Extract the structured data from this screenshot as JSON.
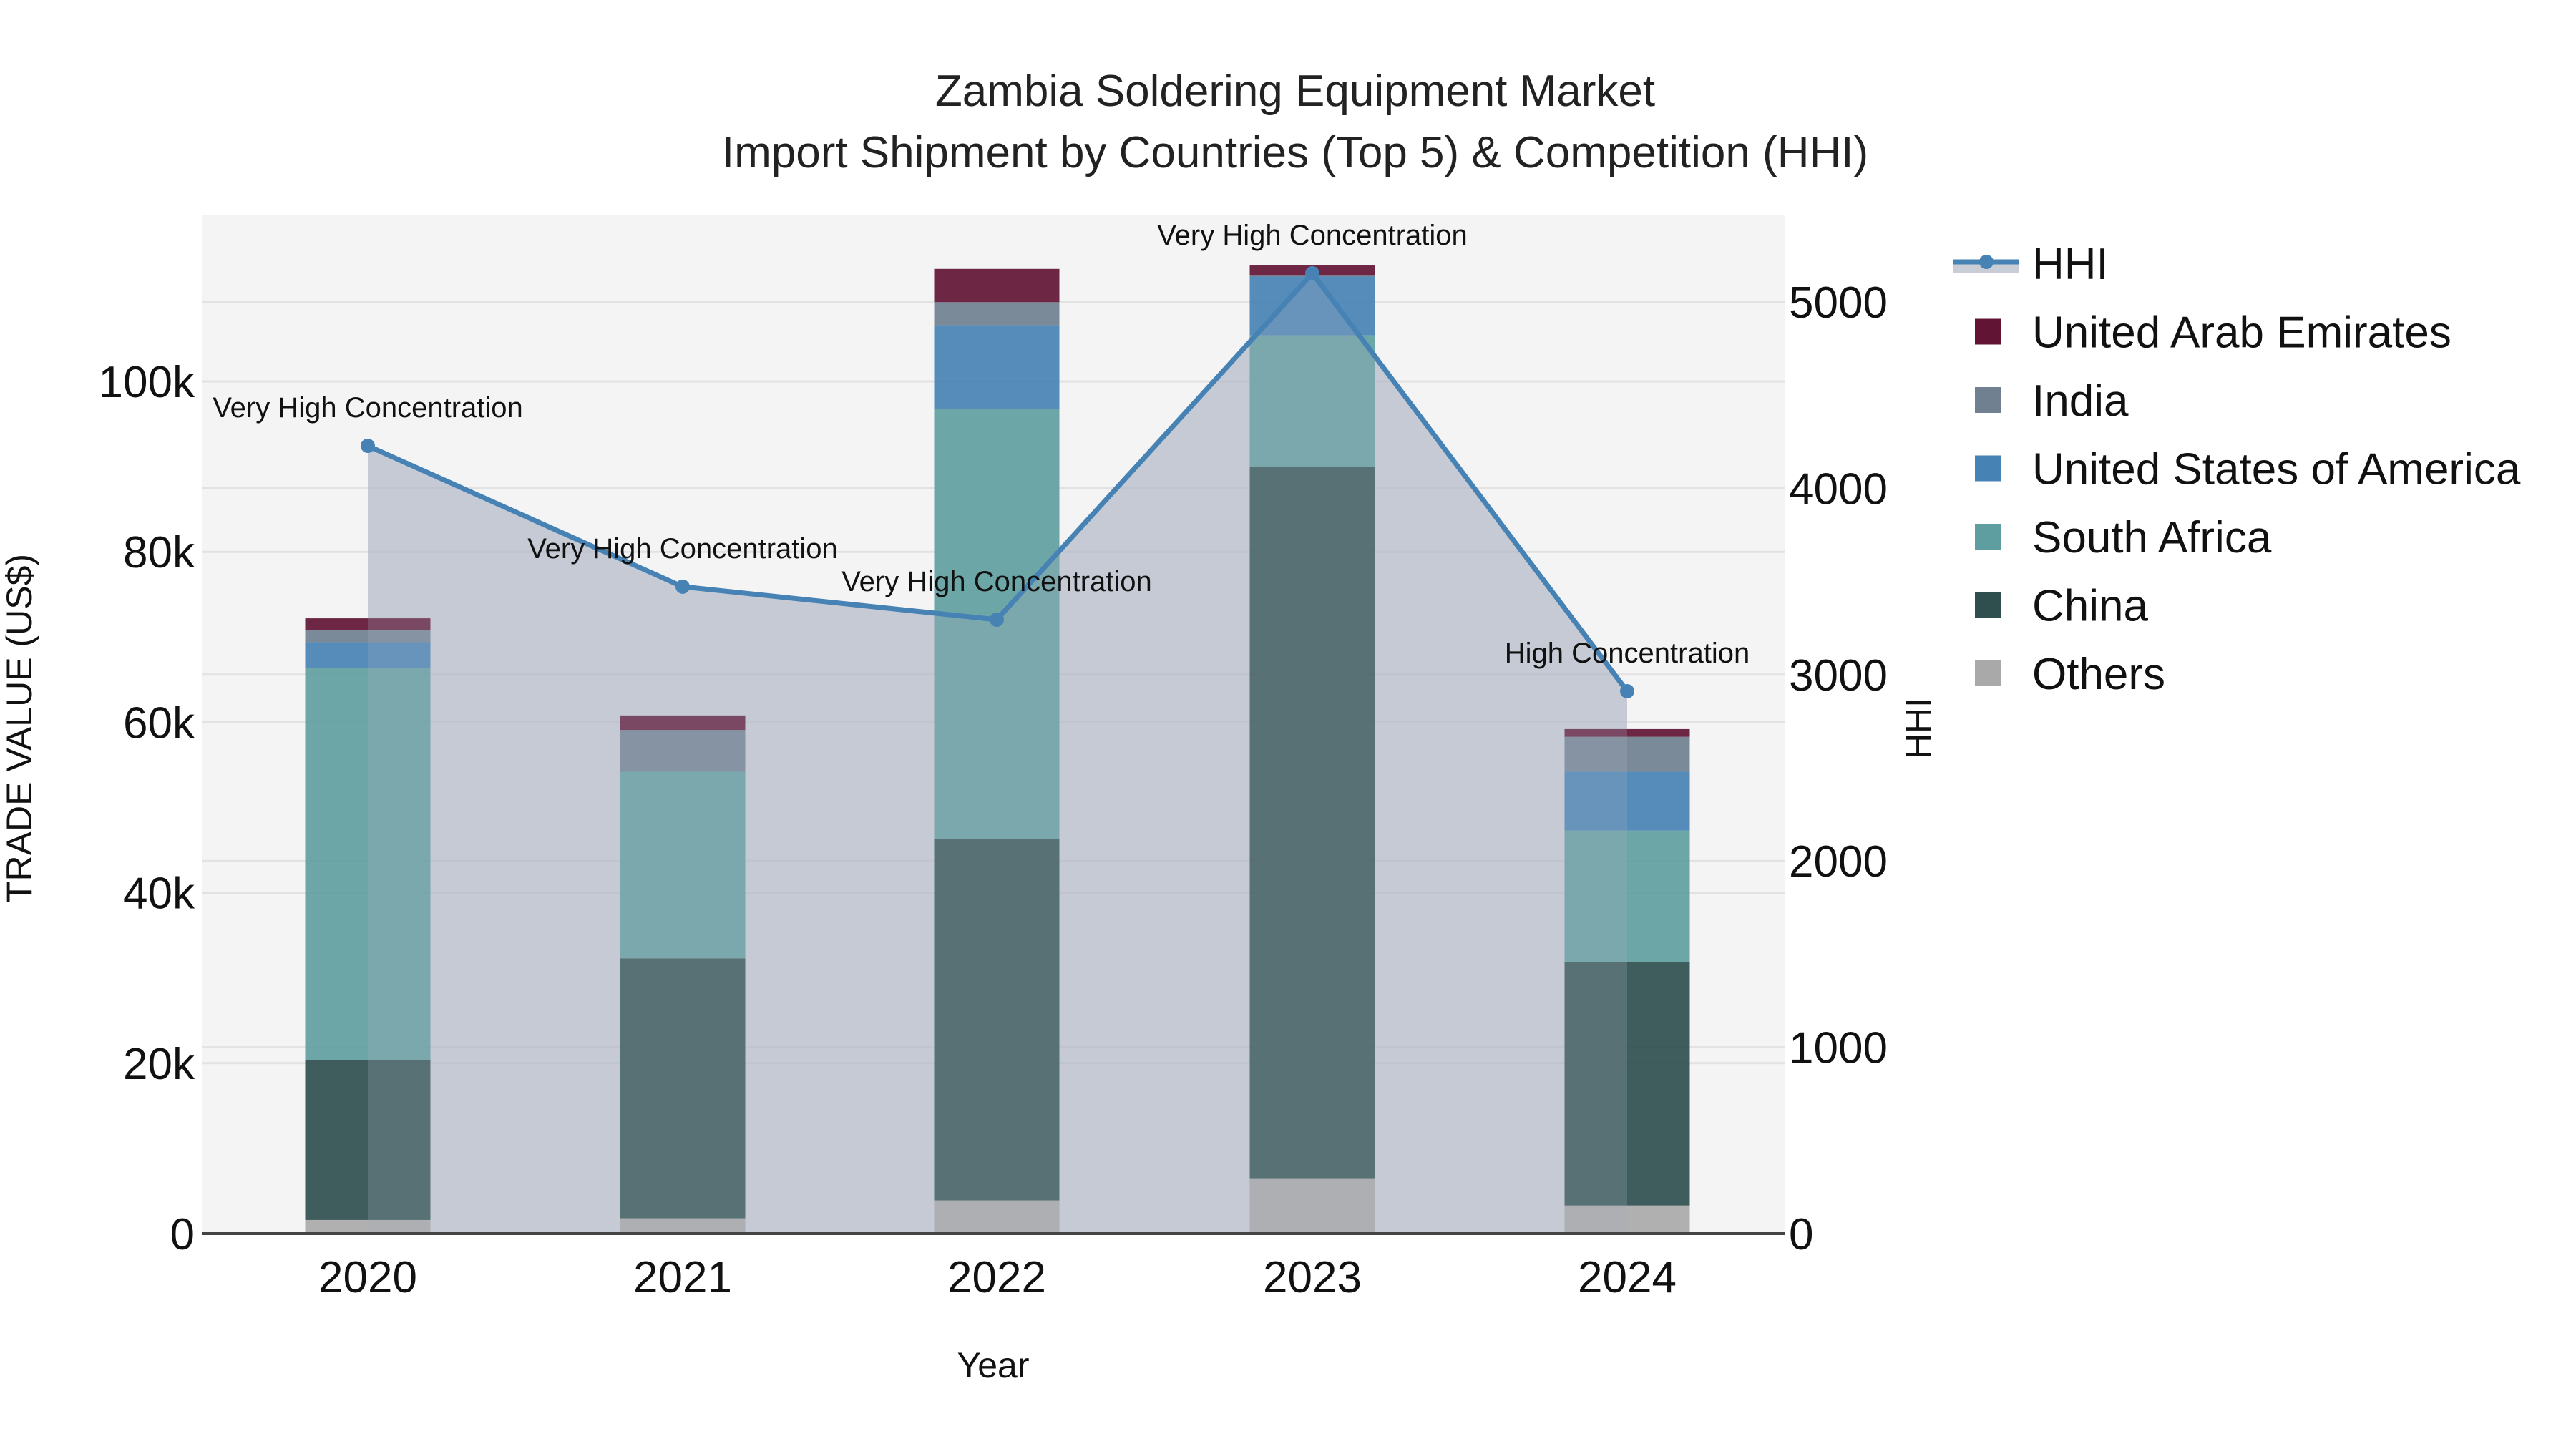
{
  "chart_data": {
    "type": "bar",
    "title": "Zambia Soldering Equipment Market",
    "subtitle": "Import Shipment by Countries (Top 5) & Competition (HHI)",
    "xlabel": "Year",
    "ylabel": "TRADE VALUE (US$)",
    "y2label": "HHI",
    "categories": [
      "2020",
      "2021",
      "2022",
      "2023",
      "2024"
    ],
    "stacked": true,
    "ylim": [
      0,
      119000
    ],
    "y_ticks": [
      0,
      20000,
      40000,
      60000,
      80000,
      100000
    ],
    "y_tick_labels": [
      "0",
      "20k",
      "40k",
      "60k",
      "80k",
      "100k"
    ],
    "y2lim": [
      0,
      5460
    ],
    "y2_ticks": [
      0,
      1000,
      2000,
      3000,
      4000,
      5000
    ],
    "y2_tick_labels": [
      "0",
      "1000",
      "2000",
      "3000",
      "4000",
      "5000"
    ],
    "grid": true,
    "legend_position": "right",
    "series": [
      {
        "name": "Others",
        "color": "#a9a9a9",
        "values": [
          1600,
          1800,
          3900,
          6500,
          3300
        ]
      },
      {
        "name": "China",
        "color": "#2f4f4f",
        "values": [
          18800,
          30500,
          42400,
          83500,
          28600
        ]
      },
      {
        "name": "South Africa",
        "color": "#5f9ea0",
        "values": [
          46000,
          21900,
          50500,
          15400,
          15400
        ]
      },
      {
        "name": "United States of America",
        "color": "#4682b4",
        "values": [
          3000,
          0,
          9800,
          6900,
          6900
        ]
      },
      {
        "name": "India",
        "color": "#708090",
        "values": [
          1400,
          4900,
          2700,
          100,
          4100
        ]
      },
      {
        "name": "United Arab Emirates",
        "color": "#611434",
        "values": [
          1400,
          1700,
          3900,
          1200,
          900
        ]
      }
    ],
    "line_series": {
      "name": "HHI",
      "axis": "y2",
      "color": "#4682b4",
      "fill_color": "#b0b7c6",
      "values": [
        4228,
        3472,
        3295,
        5154,
        2911
      ],
      "annotations": [
        "Very High Concentration",
        "Very High Concentration",
        "Very High Concentration",
        "Very High Concentration",
        "High Concentration"
      ]
    }
  },
  "legend": {
    "items": [
      {
        "label": "HHI",
        "kind": "line",
        "color": "#4682b4"
      },
      {
        "label": "United Arab Emirates",
        "kind": "box",
        "color": "#611434"
      },
      {
        "label": "India",
        "kind": "box",
        "color": "#708090"
      },
      {
        "label": "United States of America",
        "kind": "box",
        "color": "#4682b4"
      },
      {
        "label": "South Africa",
        "kind": "box",
        "color": "#5f9ea0"
      },
      {
        "label": "China",
        "kind": "box",
        "color": "#2f4f4f"
      },
      {
        "label": "Others",
        "kind": "box",
        "color": "#a9a9a9"
      }
    ]
  }
}
